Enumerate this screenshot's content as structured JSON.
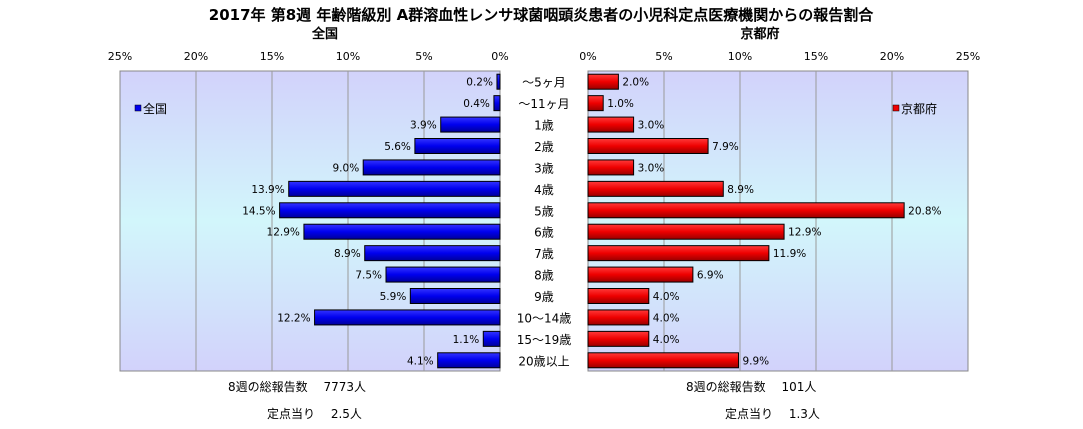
{
  "colors": {
    "national_fill": "#0000ee",
    "kyoto_fill": "#ee0000",
    "bar_stroke": "#000000"
  },
  "chart_data": {
    "type": "bar",
    "title": "2017年 第8週 年齢階級別 A群溶血性レンサ球菌咽頭炎患者の小児科定点医療機関からの報告割合",
    "categories": [
      "～5ヶ月",
      "～11ヶ月",
      "1歳",
      "2歳",
      "3歳",
      "4歳",
      "5歳",
      "6歳",
      "7歳",
      "8歳",
      "9歳",
      "10～14歳",
      "15～19歳",
      "20歳以上"
    ],
    "xlim": [
      0,
      25
    ],
    "tick_values": [
      0,
      5,
      10,
      15,
      20,
      25
    ],
    "tick_labels": [
      "0%",
      "5%",
      "10%",
      "15%",
      "20%",
      "25%"
    ],
    "grid": true,
    "series": [
      {
        "name": "全国",
        "side": "left",
        "legend": "全国",
        "values": [
          0.2,
          0.4,
          3.9,
          5.6,
          9.0,
          13.9,
          14.5,
          12.9,
          8.9,
          7.5,
          5.9,
          12.2,
          1.1,
          4.1
        ],
        "labels": [
          "0.2%",
          "0.4%",
          "3.9%",
          "5.6%",
          "9.0%",
          "13.9%",
          "14.5%",
          "12.9%",
          "8.9%",
          "7.5%",
          "5.9%",
          "12.2%",
          "1.1%",
          "4.1%"
        ]
      },
      {
        "name": "京都府",
        "side": "right",
        "legend": "京都府",
        "values": [
          2.0,
          1.0,
          3.0,
          7.9,
          3.0,
          8.9,
          20.8,
          12.9,
          11.9,
          6.9,
          4.0,
          4.0,
          4.0,
          9.9
        ],
        "labels": [
          "2.0%",
          "1.0%",
          "3.0%",
          "7.9%",
          "3.0%",
          "8.9%",
          "20.8%",
          "12.9%",
          "11.9%",
          "6.9%",
          "4.0%",
          "4.0%",
          "4.0%",
          "9.9%"
        ]
      }
    ]
  },
  "footer": {
    "national_total": "8週の総報告数　 7773人",
    "national_per_site": "定点当り　 2.5人",
    "kyoto_total": "8週の総報告数　 101人",
    "kyoto_per_site": "定点当り　 1.3人"
  }
}
